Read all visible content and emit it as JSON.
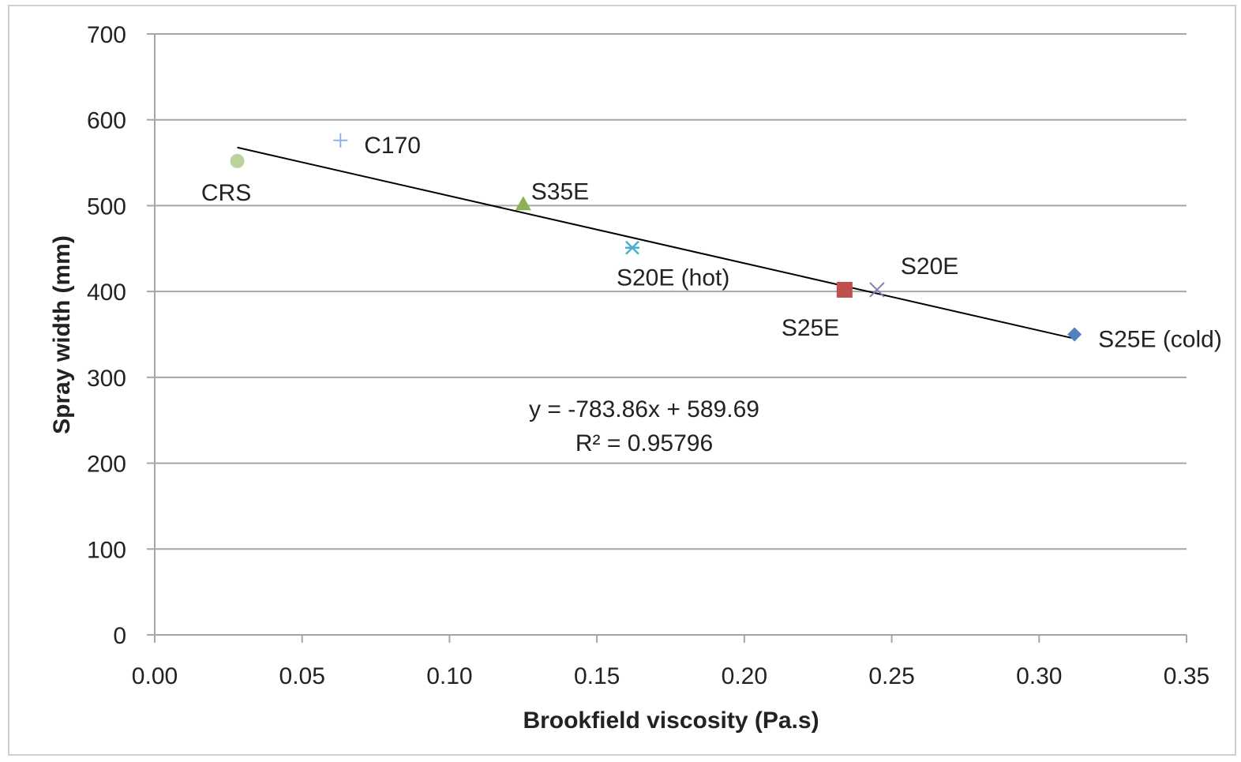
{
  "chart_data": {
    "type": "scatter",
    "xlabel": "Brookfield viscosity (Pa.s)",
    "ylabel": "Spray width (mm)",
    "xlim": [
      0,
      0.35
    ],
    "ylim": [
      0,
      700
    ],
    "x_ticks": [
      "0.00",
      "0.05",
      "0.10",
      "0.15",
      "0.20",
      "0.25",
      "0.30",
      "0.35"
    ],
    "y_ticks": [
      "0",
      "100",
      "200",
      "300",
      "400",
      "500",
      "600",
      "700"
    ],
    "grid": "horizontal",
    "points": [
      {
        "label": "CRS",
        "x": 0.028,
        "y": 552,
        "marker": "circle",
        "color": "#b9d39a"
      },
      {
        "label": "C170",
        "x": 0.063,
        "y": 576,
        "marker": "plus",
        "color": "#8fb3e0"
      },
      {
        "label": "S35E",
        "x": 0.125,
        "y": 502,
        "marker": "triangle",
        "color": "#8cb055"
      },
      {
        "label": "S20E (hot)",
        "x": 0.162,
        "y": 451,
        "marker": "star",
        "color": "#4aaed0"
      },
      {
        "label": "S25E",
        "x": 0.234,
        "y": 402,
        "marker": "square",
        "color": "#c0504d"
      },
      {
        "label": "S20E",
        "x": 0.245,
        "y": 402,
        "marker": "x",
        "color": "#8a7bb5"
      },
      {
        "label": "S25E (cold)",
        "x": 0.312,
        "y": 350,
        "marker": "diamond",
        "color": "#4f81bd"
      }
    ],
    "trendline": {
      "slope": -783.86,
      "intercept": 589.69,
      "x_range": [
        0.028,
        0.312
      ],
      "equation": "y = -783.86x + 589.69",
      "r_squared": "R² = 0.95796"
    }
  }
}
